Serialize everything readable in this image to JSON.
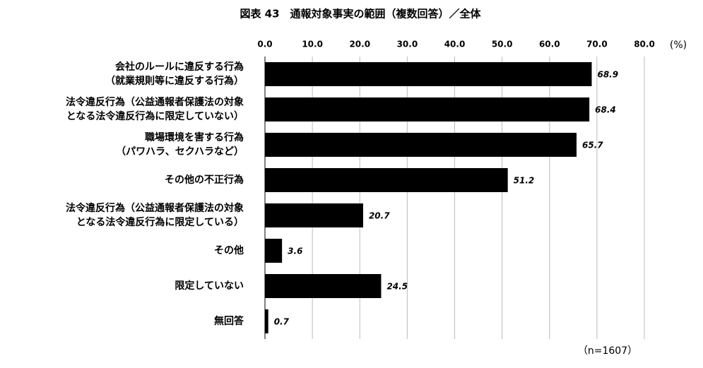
{
  "chart_data": {
    "type": "bar",
    "orientation": "horizontal",
    "title": "図表 43　通報対象事実の範囲（複数回答）／全体",
    "unit_label": "(%)",
    "note": "（n=1607）",
    "categories": [
      [
        "会社のルールに違反する行為",
        "（就業規則等に違反する行為）"
      ],
      [
        "法令違反行為（公益通報者保護法の対象",
        "となる法令違反行為に限定していない）"
      ],
      [
        "職場環境を害する行為",
        "（パワハラ、セクハラなど）"
      ],
      [
        "その他の不正行為"
      ],
      [
        "法令違反行為（公益通報者保護法の対象",
        "となる法令違反行為に限定している）"
      ],
      [
        "その他"
      ],
      [
        "限定していない"
      ],
      [
        "無回答"
      ]
    ],
    "values": [
      68.9,
      68.4,
      65.7,
      51.2,
      20.7,
      3.6,
      24.5,
      0.7
    ],
    "color": "#000000",
    "xlim": [
      0,
      80
    ],
    "xticks": [
      {
        "value": 0,
        "label": "0.0"
      },
      {
        "value": 10,
        "label": "10.0"
      },
      {
        "value": 20,
        "label": "20.0"
      },
      {
        "value": 30,
        "label": "30.0"
      },
      {
        "value": 40,
        "label": "40.0"
      },
      {
        "value": 50,
        "label": "50.0"
      },
      {
        "value": 60,
        "label": "60.0"
      },
      {
        "value": 70,
        "label": "70.0"
      },
      {
        "value": 80,
        "label": "80.0"
      }
    ],
    "grid": true
  }
}
